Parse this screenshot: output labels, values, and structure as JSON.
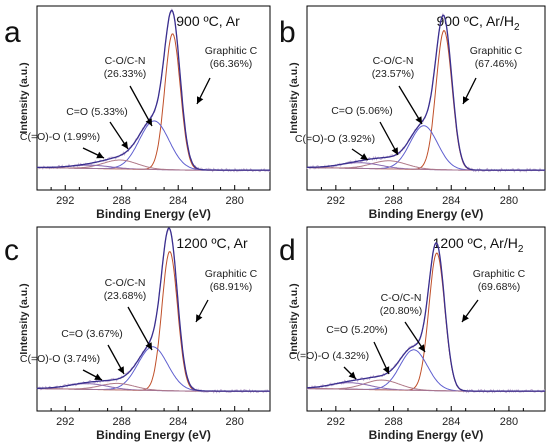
{
  "colors": {
    "envelope": "#3a2f8f",
    "raw": "#c8b6d6",
    "graphitic": "#c0502a",
    "co_cn": "#6060d0",
    "c_eq_o": "#b07a88",
    "c_o_o": "#8a6ab0",
    "axis": "#000000"
  },
  "chart_data": [
    {
      "type": "line",
      "letter": "a",
      "condition": "900 ºC, Ar",
      "xlabel": "Binding Energy (eV)",
      "ylabel": "Intensity (a.u.)",
      "xlim": [
        294,
        277.5
      ],
      "x_reversed": true,
      "xticks": [
        "292",
        "288",
        "284",
        "280"
      ],
      "components": [
        {
          "name": "Graphitic C",
          "percent": "(66.36%)",
          "center": 284.4,
          "height": 0.84,
          "width": 0.55
        },
        {
          "name": "C-O/C-N",
          "percent": "(26.33%)",
          "center": 285.7,
          "height": 0.3,
          "width": 1.05
        },
        {
          "name": "C=O",
          "percent": "(5.33%)",
          "center": 288.1,
          "height": 0.055,
          "width": 1.2
        },
        {
          "name": "C(=O)-O",
          "percent": "(1.99%)",
          "center": 290.2,
          "height": 0.02,
          "width": 1.4
        }
      ]
    },
    {
      "type": "line",
      "letter": "b",
      "condition_prefix": "900 ºC, Ar/H",
      "condition_sub": "2",
      "xlabel": "Binding Energy (eV)",
      "ylabel": "Intensity (a.u.)",
      "xlim": [
        294,
        277.5
      ],
      "x_reversed": true,
      "xticks": [
        "292",
        "288",
        "284",
        "280"
      ],
      "components": [
        {
          "name": "Graphitic C",
          "percent": "(67.46%)",
          "center": 284.5,
          "height": 0.86,
          "width": 0.55
        },
        {
          "name": "C-O/C-N",
          "percent": "(23.57%)",
          "center": 285.9,
          "height": 0.27,
          "width": 0.95
        },
        {
          "name": "C=O",
          "percent": "(5.06%)",
          "center": 288.3,
          "height": 0.05,
          "width": 1.2
        },
        {
          "name": "C(=O)-O",
          "percent": "(3.92%)",
          "center": 290.3,
          "height": 0.035,
          "width": 1.4
        }
      ]
    },
    {
      "type": "line",
      "letter": "c",
      "condition": "1200 ºC, Ar",
      "xlabel": "Binding Energy (eV)",
      "ylabel": "Intensity (a.u.)",
      "xlim": [
        294,
        277.5
      ],
      "x_reversed": true,
      "xticks": [
        "292",
        "288",
        "284",
        "280"
      ],
      "components": [
        {
          "name": "Graphitic C",
          "percent": "(68.91%)",
          "center": 284.6,
          "height": 0.86,
          "width": 0.55
        },
        {
          "name": "C-O/C-N",
          "percent": "(23.68%)",
          "center": 285.8,
          "height": 0.27,
          "width": 1.05
        },
        {
          "name": "C=O",
          "percent": "(3.67%)",
          "center": 288.3,
          "height": 0.04,
          "width": 1.2
        },
        {
          "name": "C(=O)-O",
          "percent": "(3.74%)",
          "center": 290.4,
          "height": 0.035,
          "width": 1.4
        }
      ]
    },
    {
      "type": "line",
      "letter": "d",
      "condition_prefix": "1200 ºC, Ar/H",
      "condition_sub": "2",
      "xlabel": "Binding Energy (eV)",
      "ylabel": "Intensity (a.u.)",
      "xlim": [
        294,
        277.5
      ],
      "x_reversed": true,
      "xticks": [
        "292",
        "288",
        "284",
        "280"
      ],
      "components": [
        {
          "name": "Graphitic C",
          "percent": "(69.68%)",
          "center": 285.0,
          "height": 0.85,
          "width": 0.55
        },
        {
          "name": "C-O/C-N",
          "percent": "(20.80%)",
          "center": 286.6,
          "height": 0.25,
          "width": 0.95
        },
        {
          "name": "C=O",
          "percent": "(5.20%)",
          "center": 288.8,
          "height": 0.06,
          "width": 1.2
        },
        {
          "name": "C(=O)-O",
          "percent": "(4.32%)",
          "center": 291.0,
          "height": 0.04,
          "width": 1.4
        }
      ]
    }
  ]
}
